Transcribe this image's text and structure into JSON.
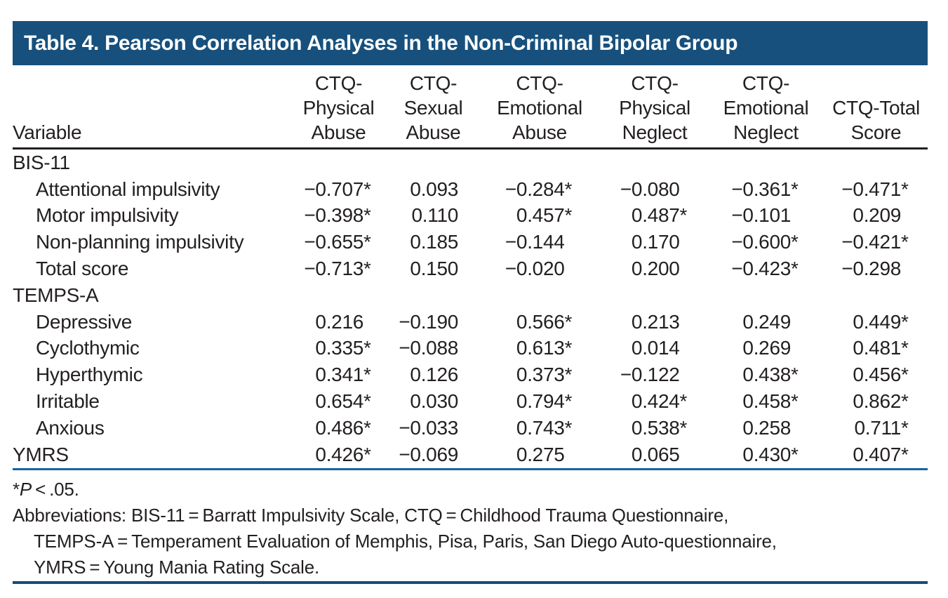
{
  "title": "Table 4. Pearson Correlation Analyses in the Non-Criminal Bipolar Group",
  "colors": {
    "title_bar_bg": "#17507c",
    "title_text": "#ffffff",
    "mid_rule_blue": "#1563a1",
    "bottom_rule_blue": "#174b7d",
    "header_rule_dark": "#231f20",
    "body_text": "#231f20"
  },
  "table": {
    "columns": [
      "Variable",
      "CTQ-\nPhysical\nAbuse",
      "CTQ-\nSexual\nAbuse",
      "CTQ-\nEmotional\nAbuse",
      "CTQ-\nPhysical\nNeglect",
      "CTQ-\nEmotional\nNeglect",
      "CTQ-Total\nScore"
    ],
    "rows": [
      {
        "label": "BIS-11",
        "indent": false,
        "values": []
      },
      {
        "label": "Attentional impulsivity",
        "indent": true,
        "values": [
          "−0.707*",
          "0.093",
          "−0.284*",
          "−0.080",
          "−0.361*",
          "−0.471*"
        ]
      },
      {
        "label": "Motor impulsivity",
        "indent": true,
        "values": [
          "−0.398*",
          "0.110",
          "0.457*",
          "0.487*",
          "−0.101",
          "0.209"
        ]
      },
      {
        "label": "Non-planning impulsivity",
        "indent": true,
        "values": [
          "−0.655*",
          "0.185",
          "−0.144",
          "0.170",
          "−0.600*",
          "−0.421*"
        ]
      },
      {
        "label": "Total score",
        "indent": true,
        "values": [
          "−0.713*",
          "0.150",
          "−0.020",
          "0.200",
          "−0.423*",
          "−0.298"
        ]
      },
      {
        "label": "TEMPS-A",
        "indent": false,
        "values": []
      },
      {
        "label": "Depressive",
        "indent": true,
        "values": [
          "0.216",
          "−0.190",
          "0.566*",
          "0.213",
          "0.249",
          "0.449*"
        ]
      },
      {
        "label": "Cyclothymic",
        "indent": true,
        "values": [
          "0.335*",
          "−0.088",
          "0.613*",
          "0.014",
          "0.269",
          "0.481*"
        ]
      },
      {
        "label": "Hyperthymic",
        "indent": true,
        "values": [
          "0.341*",
          "0.126",
          "0.373*",
          "−0.122",
          "0.438*",
          "0.456*"
        ]
      },
      {
        "label": "Irritable",
        "indent": true,
        "values": [
          "0.654*",
          "0.030",
          "0.794*",
          "0.424*",
          "0.458*",
          "0.862*"
        ]
      },
      {
        "label": "Anxious",
        "indent": true,
        "values": [
          "0.486*",
          "−0.033",
          "0.743*",
          "0.538*",
          "0.258",
          "0.711*"
        ]
      },
      {
        "label": "YMRS",
        "indent": false,
        "values": [
          "0.426*",
          "−0.069",
          "0.275",
          "0.065",
          "0.430*",
          "0.407*"
        ]
      }
    ]
  },
  "footnotes": {
    "sig_marker": "*",
    "sig_symbol": "P",
    "sig_text": " < .05.",
    "abbr_lines": [
      "Abbreviations: BIS-11 = Barratt Impulsivity Scale, CTQ = Childhood Trauma Questionnaire,",
      "TEMPS-A = Temperament Evaluation of Memphis, Pisa, Paris, San Diego Auto-questionnaire,",
      "YMRS = Young Mania Rating Scale."
    ]
  }
}
